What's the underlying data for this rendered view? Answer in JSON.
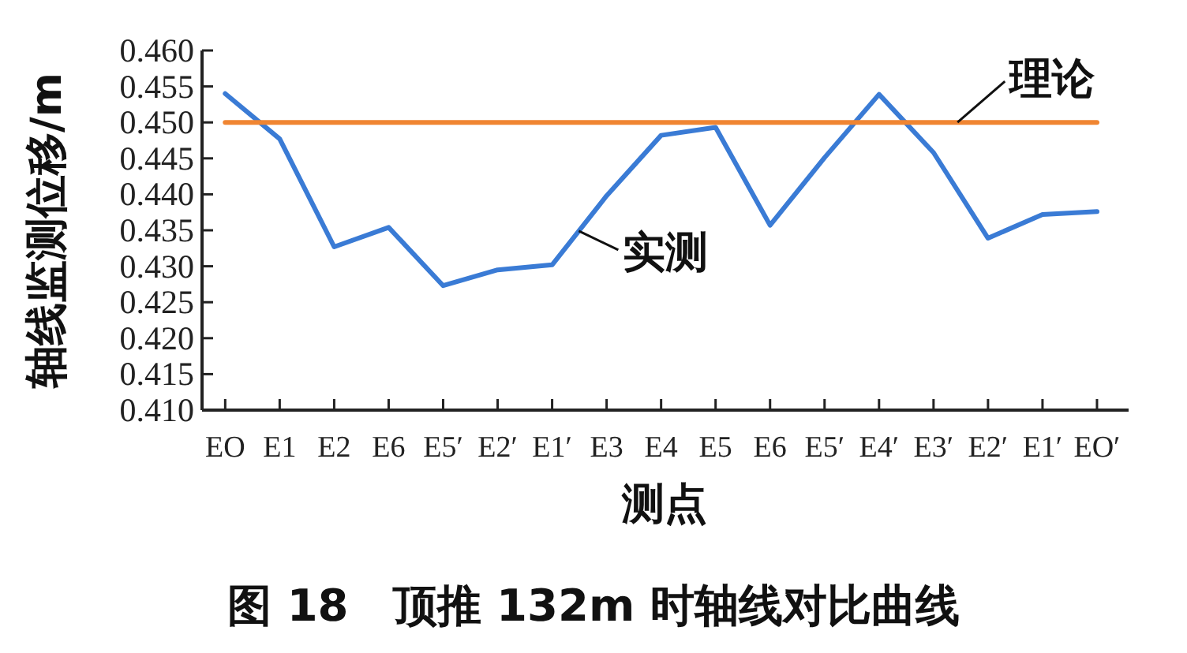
{
  "chart_data": {
    "type": "line",
    "title": "图 18　顶推 132m 时轴线对比曲线",
    "xlabel": "测点",
    "ylabel": "轴线监测位移/m",
    "categories": [
      "EO",
      "E1",
      "E2",
      "E6",
      "E5′",
      "E2′",
      "E1′",
      "E3",
      "E4",
      "E5",
      "E6",
      "E5′",
      "E4′",
      "E3′",
      "E2′",
      "E1′",
      "EO′"
    ],
    "series": [
      {
        "name": "实测",
        "color": "#3a7bd5",
        "values": [
          0.454,
          0.4477,
          0.4327,
          0.4354,
          0.4273,
          0.4295,
          0.4302,
          0.4398,
          0.4482,
          0.4493,
          0.4357,
          0.4451,
          0.4539,
          0.4458,
          0.4339,
          0.4372,
          0.4376
        ]
      },
      {
        "name": "理论",
        "color": "#f08532",
        "values": [
          0.45,
          0.45,
          0.45,
          0.45,
          0.45,
          0.45,
          0.45,
          0.45,
          0.45,
          0.45,
          0.45,
          0.45,
          0.45,
          0.45,
          0.45,
          0.45,
          0.45
        ]
      }
    ],
    "ylim": [
      0.41,
      0.46
    ],
    "yticks": [
      {
        "value": 0.41,
        "label": "0.410"
      },
      {
        "value": 0.415,
        "label": "0.415"
      },
      {
        "value": 0.42,
        "label": "0.420"
      },
      {
        "value": 0.425,
        "label": "0.425"
      },
      {
        "value": 0.43,
        "label": "0.430"
      },
      {
        "value": 0.435,
        "label": "0.435"
      },
      {
        "value": 0.44,
        "label": "0.440"
      },
      {
        "value": 0.445,
        "label": "0.445"
      },
      {
        "value": 0.45,
        "label": "0.450"
      },
      {
        "value": 0.455,
        "label": "0.455"
      },
      {
        "value": 0.46,
        "label": "0.460"
      }
    ],
    "legend": false,
    "grid": false
  }
}
